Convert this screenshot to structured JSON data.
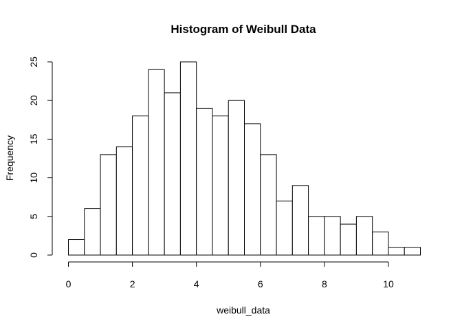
{
  "chart_data": {
    "type": "bar",
    "title": "Histogram of Weibull Data",
    "xlabel": "weibull_data",
    "ylabel": "Frequency",
    "bin_width": 0.5,
    "bins": [
      {
        "start": 0.0,
        "end": 0.5,
        "count": 2
      },
      {
        "start": 0.5,
        "end": 1.0,
        "count": 6
      },
      {
        "start": 1.0,
        "end": 1.5,
        "count": 13
      },
      {
        "start": 1.5,
        "end": 2.0,
        "count": 14
      },
      {
        "start": 2.0,
        "end": 2.5,
        "count": 18
      },
      {
        "start": 2.5,
        "end": 3.0,
        "count": 24
      },
      {
        "start": 3.0,
        "end": 3.5,
        "count": 21
      },
      {
        "start": 3.5,
        "end": 4.0,
        "count": 25
      },
      {
        "start": 4.0,
        "end": 4.5,
        "count": 19
      },
      {
        "start": 4.5,
        "end": 5.0,
        "count": 18
      },
      {
        "start": 5.0,
        "end": 5.5,
        "count": 20
      },
      {
        "start": 5.5,
        "end": 6.0,
        "count": 17
      },
      {
        "start": 6.0,
        "end": 6.5,
        "count": 13
      },
      {
        "start": 6.5,
        "end": 7.0,
        "count": 7
      },
      {
        "start": 7.0,
        "end": 7.5,
        "count": 9
      },
      {
        "start": 7.5,
        "end": 8.0,
        "count": 5
      },
      {
        "start": 8.0,
        "end": 8.5,
        "count": 5
      },
      {
        "start": 8.5,
        "end": 9.0,
        "count": 4
      },
      {
        "start": 9.0,
        "end": 9.5,
        "count": 5
      },
      {
        "start": 9.5,
        "end": 10.0,
        "count": 3
      },
      {
        "start": 10.0,
        "end": 10.5,
        "count": 1
      },
      {
        "start": 10.5,
        "end": 11.0,
        "count": 1
      }
    ],
    "x_ticks": [
      "0",
      "2",
      "4",
      "6",
      "8",
      "10"
    ],
    "y_ticks": [
      "0",
      "5",
      "10",
      "15",
      "20",
      "25"
    ],
    "xlim": [
      0,
      11
    ],
    "ylim": [
      0,
      25
    ],
    "grid": false,
    "legend": "none",
    "bar_fill": "#ffffff",
    "bar_stroke": "#000000"
  }
}
